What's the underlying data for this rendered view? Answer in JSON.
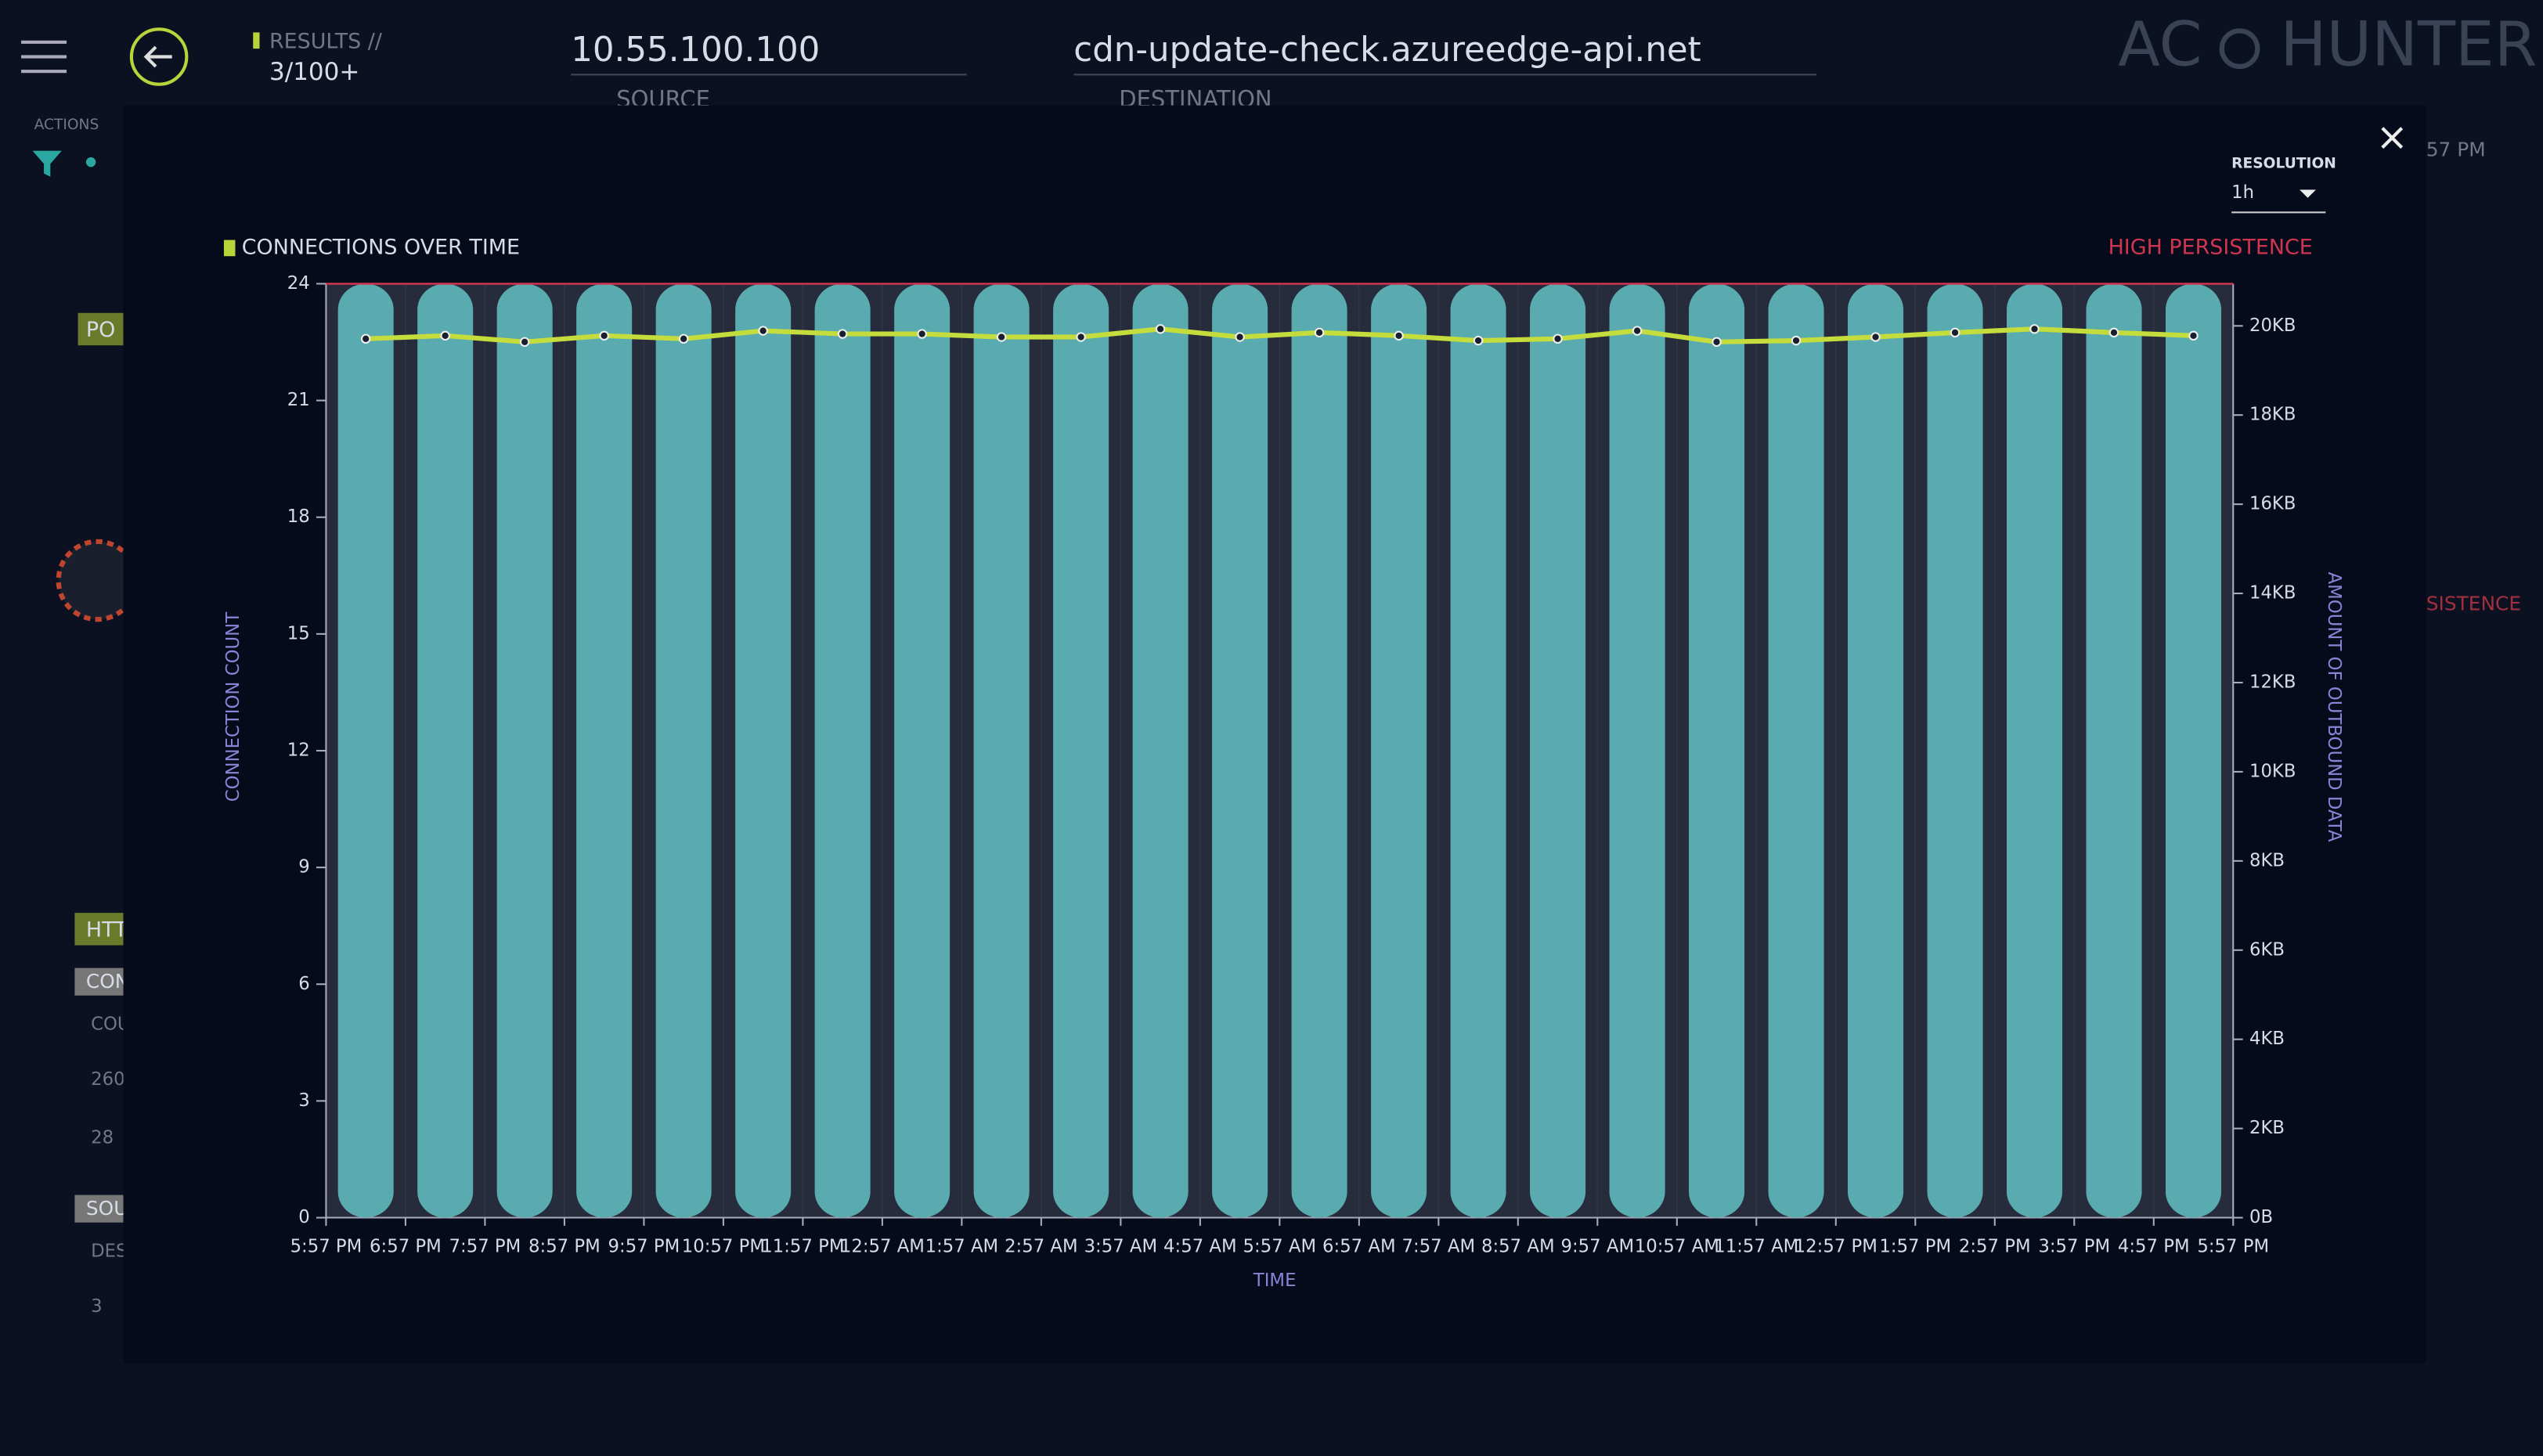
{
  "header": {
    "results_label": "RESULTS //",
    "results_count": "3/100+",
    "source_value": "10.55.100.100",
    "source_label": "SOURCE",
    "destination_value": "cdn-update-check.azureedge-api.net",
    "destination_label": "DESTINATION",
    "logo_left": "AC",
    "logo_right": "HUNTER"
  },
  "sidebar": {
    "actions_label": "ACTIONS",
    "tags": [
      "PO",
      "HTT",
      "CON",
      "SOU"
    ],
    "texts": [
      "COU",
      "260",
      "28",
      "DES",
      "3"
    ],
    "right_time": "57 PM",
    "right_label": "SISTENCE"
  },
  "modal": {
    "resolution_label": "RESOLUTION",
    "resolution_value": "1h"
  },
  "chart_data": {
    "type": "bar_line",
    "title": "CONNECTIONS OVER TIME",
    "threshold": {
      "label": "HIGH PERSISTENCE",
      "value": 24,
      "color": "#d0354f"
    },
    "ylabel": "CONNECTION COUNT",
    "y2label": "AMOUNT OF OUTBOUND DATA",
    "xlabel": "TIME",
    "xtick_labels": [
      "5:57 PM",
      "6:57 PM",
      "7:57 PM",
      "8:57 PM",
      "9:57 PM",
      "10:57 PM",
      "11:57 PM",
      "12:57 AM",
      "1:57 AM",
      "2:57 AM",
      "3:57 AM",
      "4:57 AM",
      "5:57 AM",
      "6:57 AM",
      "7:57 AM",
      "8:57 AM",
      "9:57 AM",
      "10:57 AM",
      "11:57 AM",
      "12:57 PM",
      "1:57 PM",
      "2:57 PM",
      "3:57 PM",
      "4:57 PM",
      "5:57 PM"
    ],
    "ylim": [
      0,
      24
    ],
    "yticks": [
      0,
      3,
      6,
      9,
      12,
      15,
      18,
      21,
      24
    ],
    "y2lim": [
      0,
      20.945
    ],
    "y2ticks": [
      {
        "value": 0,
        "label": "0B"
      },
      {
        "value": 2,
        "label": "2KB"
      },
      {
        "value": 4,
        "label": "4KB"
      },
      {
        "value": 6,
        "label": "6KB"
      },
      {
        "value": 8,
        "label": "8KB"
      },
      {
        "value": 10,
        "label": "10KB"
      },
      {
        "value": 12,
        "label": "12KB"
      },
      {
        "value": 14,
        "label": "14KB"
      },
      {
        "value": 16,
        "label": "16KB"
      },
      {
        "value": 18,
        "label": "18KB"
      },
      {
        "value": 20,
        "label": "20KB"
      }
    ],
    "series": [
      {
        "color": "#5aabb0",
        "values": [
          24,
          24,
          24,
          24,
          24,
          24,
          24,
          24,
          24,
          24,
          24,
          24,
          24,
          24,
          24,
          24,
          24,
          24,
          24,
          24,
          24,
          24,
          24,
          24
        ]
      },
      {
        "color": "#c5dd3c",
        "axis": "y2",
        "values": [
          19.71,
          19.78,
          19.64,
          19.78,
          19.71,
          19.89,
          19.82,
          19.82,
          19.75,
          19.75,
          19.93,
          19.75,
          19.85,
          19.78,
          19.67,
          19.71,
          19.89,
          19.64,
          19.67,
          19.75,
          19.85,
          19.93,
          19.85,
          19.78
        ]
      }
    ]
  }
}
